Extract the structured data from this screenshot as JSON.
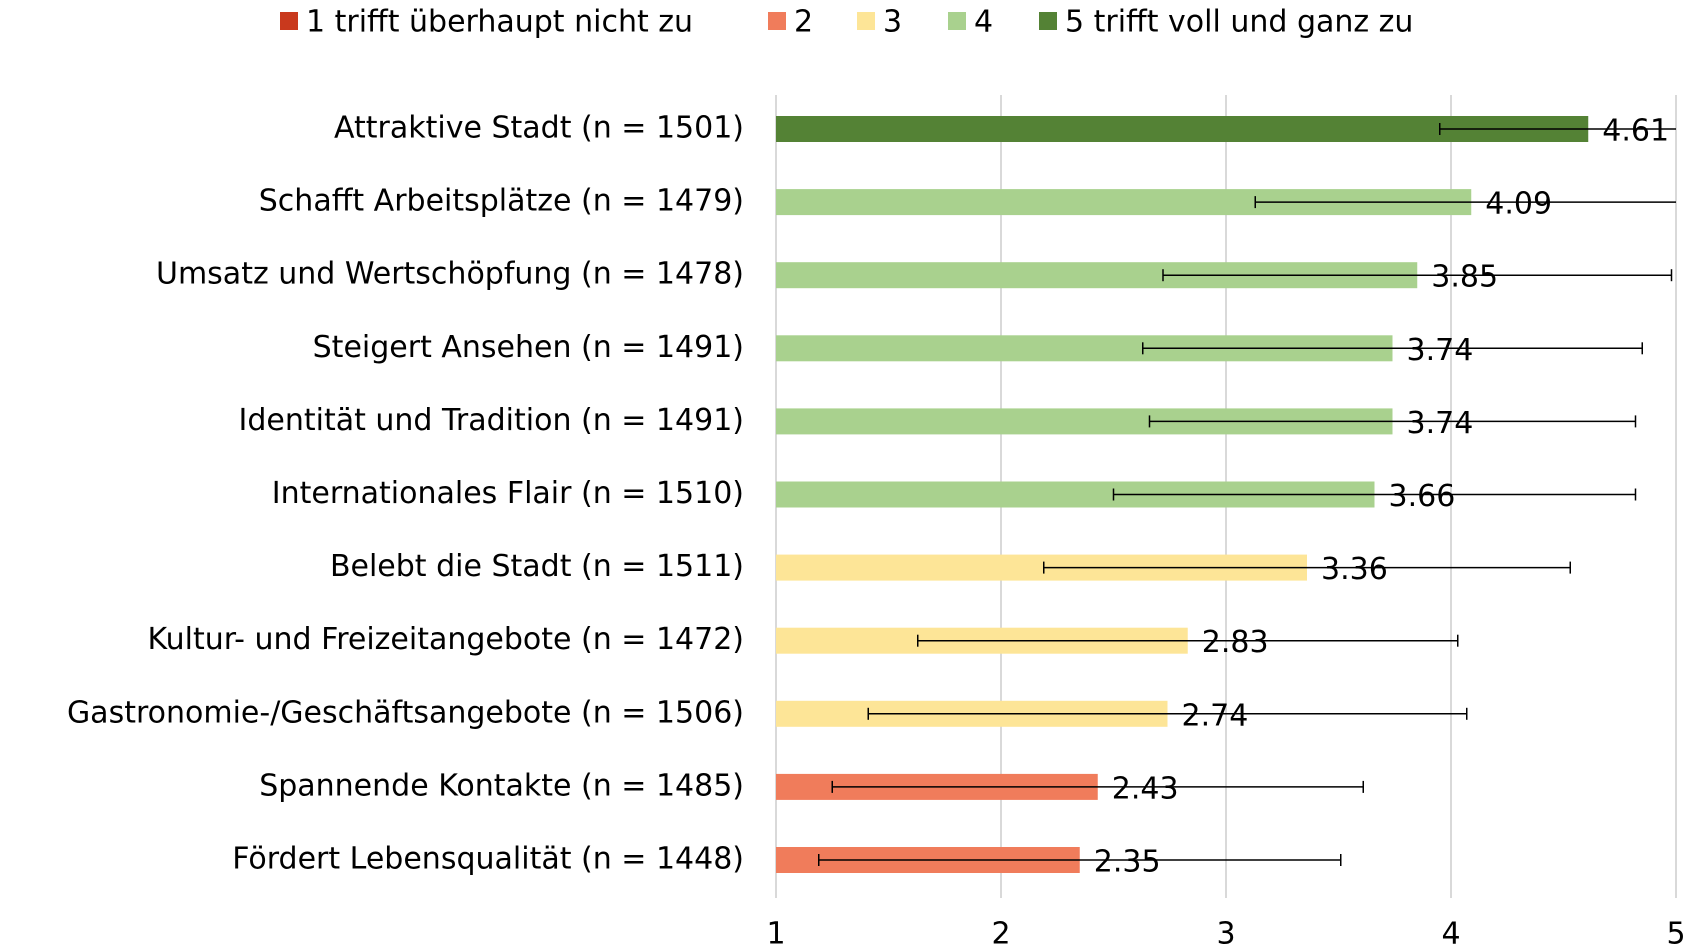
{
  "chart_data": {
    "type": "bar",
    "orientation": "horizontal",
    "categories": [
      "Attraktive Stadt (n = 1501)",
      "Schafft Arbeitsplätze (n = 1479)",
      "Umsatz und Wertschöpfung (n = 1478)",
      "Steigert Ansehen (n = 1491)",
      "Identität und Tradition (n = 1491)",
      "Internationales Flair (n = 1510)",
      "Belebt die Stadt (n = 1511)",
      "Kultur- und Freizeitangebote (n = 1472)",
      "Gastronomie-/Geschäftsangebote (n = 1506)",
      "Spannende Kontakte (n = 1485)",
      "Fördert Lebensqualität (n = 1448)"
    ],
    "series": [
      {
        "name": "1 trifft überhaupt nicht zu",
        "color": "#c9391d",
        "values": [
          null,
          null,
          null,
          null,
          null,
          null,
          null,
          null,
          null,
          null,
          null
        ],
        "errors": [
          null,
          null,
          null,
          null,
          null,
          null,
          null,
          null,
          null,
          null,
          null
        ]
      },
      {
        "name": "2",
        "color": "#f07c5b",
        "values": [
          null,
          null,
          null,
          null,
          null,
          null,
          null,
          null,
          null,
          2.43,
          2.35
        ],
        "errors": [
          null,
          null,
          null,
          null,
          null,
          null,
          null,
          null,
          null,
          1.18,
          1.16
        ]
      },
      {
        "name": "3",
        "color": "#fde597",
        "values": [
          null,
          null,
          null,
          null,
          null,
          null,
          3.36,
          2.83,
          2.74,
          null,
          null
        ],
        "errors": [
          null,
          null,
          null,
          null,
          null,
          null,
          1.17,
          1.2,
          1.33,
          null,
          null
        ]
      },
      {
        "name": "4",
        "color": "#a9d18e",
        "values": [
          null,
          4.09,
          3.85,
          3.74,
          3.74,
          3.66,
          null,
          null,
          null,
          null,
          null
        ],
        "errors": [
          null,
          0.96,
          1.13,
          1.11,
          1.08,
          1.16,
          null,
          null,
          null,
          null,
          null
        ]
      },
      {
        "name": "5 trifft voll und ganz zu",
        "color": "#548235",
        "values": [
          4.61,
          null,
          null,
          null,
          null,
          null,
          null,
          null,
          null,
          null,
          null
        ],
        "errors": [
          0.66,
          null,
          null,
          null,
          null,
          null,
          null,
          null,
          null,
          null,
          null
        ]
      }
    ],
    "xlim": [
      1,
      5
    ],
    "xticks": [
      1,
      2,
      3,
      4,
      5
    ],
    "grid": true,
    "legend": "top"
  }
}
